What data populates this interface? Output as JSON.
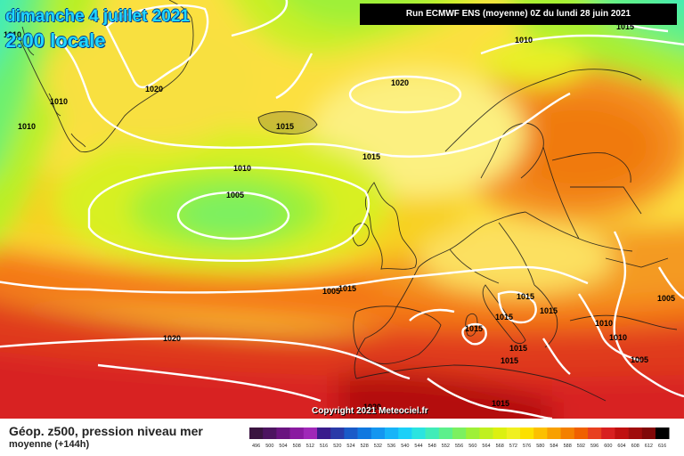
{
  "header": {
    "date": "dimanche 4 juillet 2021",
    "time": "2:00 locale",
    "run": "Run ECMWF ENS (moyenne) 0Z du lundi 28 juin 2021"
  },
  "copyright": "Copyright 2021 Meteociel.fr",
  "legend": {
    "title": "Géop. z500, pression niveau mer",
    "subtitle": "moyenne   (+144h)",
    "scale": [
      "496",
      "500",
      "504",
      "508",
      "512",
      "516",
      "520",
      "524",
      "528",
      "532",
      "536",
      "540",
      "544",
      "548",
      "552",
      "556",
      "560",
      "564",
      "568",
      "572",
      "576",
      "580",
      "584",
      "588",
      "592",
      "596",
      "600",
      "604",
      "608",
      "612",
      "616"
    ],
    "colors": [
      "#3a1440",
      "#4d1460",
      "#6a1480",
      "#8a1aa0",
      "#a028b8",
      "#3a1c8c",
      "#2a3aa8",
      "#1a5ac8",
      "#1078e0",
      "#1496f0",
      "#18b4f8",
      "#1cd0f8",
      "#2ae4e0",
      "#40ecb8",
      "#5cf08c",
      "#7cf060",
      "#9ef038",
      "#c0f020",
      "#dcf010",
      "#f0f020",
      "#fce000",
      "#fcc000",
      "#f8a000",
      "#f48000",
      "#f06000",
      "#e84020",
      "#d82020",
      "#c01010",
      "#a00c0c",
      "#800808",
      "#000000"
    ]
  },
  "isobars": [
    "1010",
    "1005",
    "1020",
    "1010",
    "1010",
    "1015",
    "1020",
    "1015",
    "1010",
    "1005",
    "1010",
    "1015",
    "1015",
    "1015",
    "1015",
    "1015",
    "1015",
    "1015",
    "1015",
    "1010",
    "1010",
    "1005",
    "1005",
    "1020",
    "1015",
    "1020"
  ],
  "colors": {
    "title_text": "#20d8ff",
    "isobar": "#ffffff",
    "run_bg": "#000000"
  }
}
